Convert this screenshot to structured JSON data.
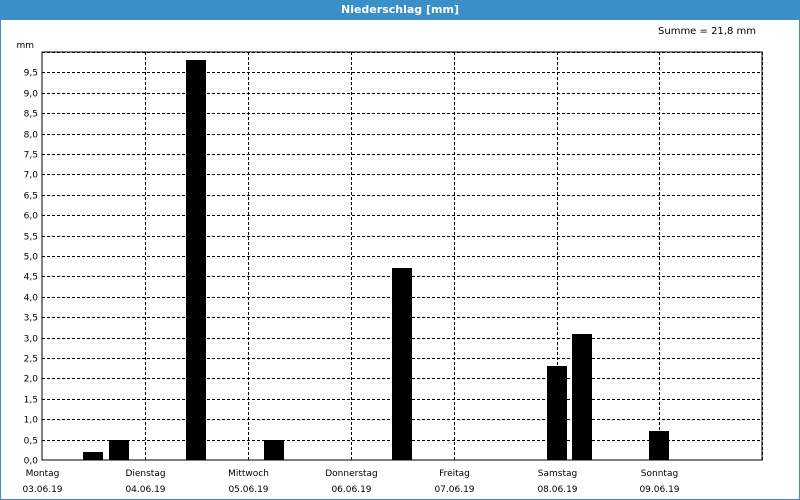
{
  "header": {
    "title": "Niederschlag [mm]"
  },
  "summary": {
    "text": "Summe = 21,8 mm"
  },
  "chart_data": {
    "type": "bar",
    "title": "Niederschlag [mm]",
    "ylabel": "mm",
    "ylim": [
      0,
      10
    ],
    "yticks": [
      "0,0",
      "0,5",
      "1,0",
      "1,5",
      "2,0",
      "2,5",
      "3,0",
      "3,5",
      "4,0",
      "4,5",
      "5,0",
      "5,5",
      "6,0",
      "6,5",
      "7,0",
      "7,5",
      "8,0",
      "8,5",
      "9,0",
      "9,5"
    ],
    "grid": true,
    "x_labels": [
      {
        "day": "Montag",
        "date": "03.06.19"
      },
      {
        "day": "Dienstag",
        "date": "04.06.19"
      },
      {
        "day": "Mittwoch",
        "date": "05.06.19"
      },
      {
        "day": "Donnerstag",
        "date": "06.06.19"
      },
      {
        "day": "Freitag",
        "date": "07.06.19"
      },
      {
        "day": "Samstag",
        "date": "08.06.19"
      },
      {
        "day": "Sonntag",
        "date": "09.06.19"
      }
    ],
    "bars": [
      {
        "x": "03.06.19 12:00",
        "value": 0.2
      },
      {
        "x": "03.06.19 18:00",
        "value": 0.5
      },
      {
        "x": "04.06.19 12:00",
        "value": 9.8
      },
      {
        "x": "05.06.19 06:00",
        "value": 0.5
      },
      {
        "x": "06.06.19 12:00",
        "value": 4.7
      },
      {
        "x": "08.06.19 00:00",
        "value": 2.3
      },
      {
        "x": "08.06.19 06:00",
        "value": 3.1
      },
      {
        "x": "09.06.19 00:00",
        "value": 0.7
      }
    ],
    "bar_color": "#000000"
  }
}
